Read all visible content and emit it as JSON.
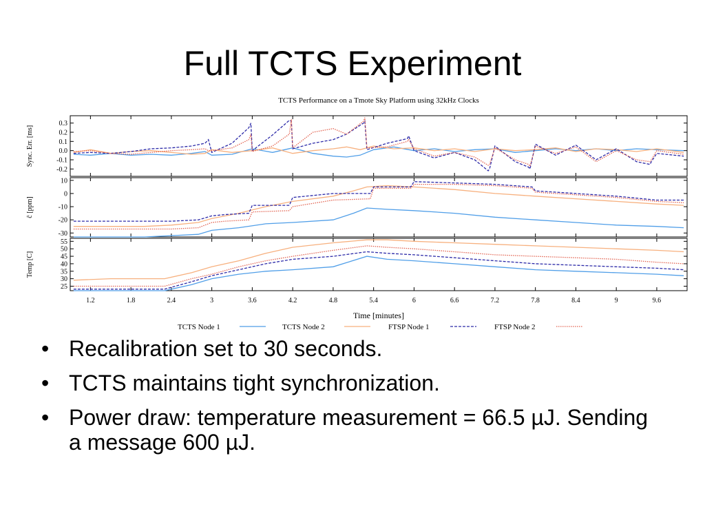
{
  "slide": {
    "title": "Full TCTS Experiment",
    "bullets": [
      "Recalibration set to 30 seconds.",
      "TCTS maintains tight synchronization.",
      "Power draw: temperature measurement = 66.5 µJ.  Sending a message 600 µJ."
    ]
  },
  "chart_data": {
    "type": "line",
    "title": "TCTS Performance on a Tmote Sky Platform using 32kHz Clocks",
    "xlabel": "Time [minutes]",
    "xlim": [
      0.9,
      10.05
    ],
    "x_ticks": [
      "1.2",
      "1.8",
      "2.4",
      "3",
      "3.6",
      "4.2",
      "4.8",
      "5.4",
      "6",
      "6.6",
      "7.2",
      "7.8",
      "8.4",
      "9",
      "9.6"
    ],
    "legend_position": "bottom",
    "legend": [
      {
        "name": "TCTS Node 1",
        "color": "#4f9ee8",
        "dash": "solid"
      },
      {
        "name": "TCTS Node 2",
        "color": "#f7b07e",
        "dash": "solid"
      },
      {
        "name": "FTSP Node 1",
        "color": "#2c2aa8",
        "dash": "dashed"
      },
      {
        "name": "FTSP Node 2",
        "color": "#e2624f",
        "dash": "dotted"
      }
    ],
    "panels": [
      {
        "ylabel": "Sync. Err. [ms]",
        "ylim": [
          -0.28,
          0.38
        ],
        "y_ticks": [
          "0.3",
          "0.2",
          "0.1",
          "0.0",
          "-0.1",
          "-0.2"
        ],
        "y_tick_values": [
          0.3,
          0.2,
          0.1,
          0.0,
          -0.1,
          -0.2
        ],
        "series": [
          {
            "name": "TCTS Node 1",
            "x": [
              0.95,
              1.2,
              1.5,
              1.8,
              2.1,
              2.4,
              2.7,
              2.9,
              3.0,
              3.3,
              3.6,
              3.9,
              4.2,
              4.5,
              4.8,
              5.0,
              5.2,
              5.4,
              5.7,
              6.0,
              6.3,
              6.6,
              6.9,
              7.2,
              7.5,
              7.8,
              8.1,
              8.4,
              8.7,
              9.0,
              9.3,
              9.6,
              10.0
            ],
            "y": [
              -0.04,
              -0.05,
              -0.03,
              -0.05,
              -0.04,
              -0.05,
              -0.03,
              -0.01,
              -0.05,
              -0.04,
              0.02,
              -0.02,
              0.03,
              -0.03,
              -0.06,
              -0.07,
              -0.05,
              0.01,
              0.04,
              0.0,
              0.02,
              -0.01,
              0.01,
              0.02,
              -0.02,
              0.0,
              0.02,
              0.0,
              0.02,
              0.0,
              0.02,
              0.01,
              0.0
            ]
          },
          {
            "name": "TCTS Node 2",
            "x": [
              0.95,
              1.2,
              1.5,
              1.8,
              2.1,
              2.4,
              2.7,
              2.9,
              3.0,
              3.3,
              3.6,
              3.9,
              4.2,
              4.5,
              4.8,
              5.0,
              5.2,
              5.4,
              5.7,
              6.0,
              6.3,
              6.6,
              6.9,
              7.2,
              7.5,
              7.8,
              8.1,
              8.4,
              8.7,
              9.0,
              9.3,
              9.6,
              10.0
            ],
            "y": [
              -0.02,
              0.01,
              -0.03,
              -0.01,
              0.0,
              -0.02,
              -0.04,
              -0.03,
              0.01,
              -0.02,
              0.0,
              0.03,
              -0.03,
              0.0,
              0.02,
              0.04,
              0.01,
              0.05,
              0.02,
              0.03,
              0.0,
              0.02,
              -0.01,
              0.02,
              0.0,
              0.01,
              0.03,
              -0.01,
              0.02,
              0.01,
              -0.01,
              0.02,
              -0.02
            ]
          },
          {
            "name": "FTSP Node 1",
            "x": [
              0.95,
              1.2,
              1.5,
              1.8,
              2.1,
              2.4,
              2.7,
              2.9,
              2.95,
              3.0,
              3.3,
              3.55,
              3.58,
              3.6,
              3.9,
              4.15,
              4.18,
              4.2,
              4.5,
              4.8,
              5.0,
              5.25,
              5.27,
              5.3,
              5.6,
              5.9,
              5.92,
              6.0,
              6.3,
              6.6,
              6.9,
              7.1,
              7.12,
              7.2,
              7.5,
              7.7,
              7.72,
              7.8,
              8.1,
              8.4,
              8.7,
              9.0,
              9.3,
              9.5,
              9.52,
              9.6,
              10.0
            ],
            "y": [
              -0.03,
              -0.02,
              -0.03,
              -0.01,
              0.02,
              0.03,
              0.05,
              0.08,
              0.12,
              -0.02,
              0.08,
              0.25,
              0.3,
              0.0,
              0.17,
              0.33,
              0.32,
              0.02,
              0.08,
              0.12,
              0.18,
              0.3,
              0.32,
              0.01,
              0.08,
              0.13,
              0.16,
              0.0,
              -0.08,
              -0.02,
              -0.1,
              -0.22,
              -0.2,
              0.05,
              -0.12,
              -0.18,
              -0.2,
              0.07,
              -0.05,
              0.06,
              -0.1,
              0.02,
              -0.12,
              -0.15,
              -0.12,
              -0.03,
              -0.06
            ]
          },
          {
            "name": "FTSP Node 2",
            "x": [
              0.95,
              1.2,
              1.5,
              1.8,
              2.1,
              2.4,
              2.7,
              2.9,
              2.95,
              3.0,
              3.3,
              3.55,
              3.58,
              3.6,
              3.9,
              4.15,
              4.18,
              4.2,
              4.5,
              4.8,
              5.0,
              5.25,
              5.27,
              5.3,
              5.6,
              5.9,
              5.92,
              6.0,
              6.3,
              6.6,
              6.9,
              7.1,
              7.12,
              7.2,
              7.5,
              7.7,
              7.72,
              7.8,
              8.1,
              8.4,
              8.7,
              9.0,
              9.3,
              9.5,
              9.52,
              9.6,
              10.0
            ],
            "y": [
              -0.01,
              0.0,
              -0.03,
              -0.04,
              -0.02,
              0.0,
              0.01,
              0.02,
              0.0,
              0.0,
              0.03,
              0.12,
              0.18,
              -0.01,
              0.05,
              0.18,
              0.34,
              0.03,
              0.2,
              0.24,
              0.18,
              0.32,
              0.36,
              0.03,
              0.04,
              0.1,
              0.12,
              0.02,
              -0.06,
              -0.02,
              -0.07,
              -0.16,
              -0.15,
              0.03,
              -0.1,
              -0.15,
              -0.17,
              0.05,
              -0.03,
              0.04,
              -0.12,
              0.0,
              -0.1,
              -0.12,
              -0.1,
              0.0,
              -0.04
            ]
          }
        ]
      },
      {
        "ylabel": "ĉ [ppm]",
        "ylim": [
          -33,
          12
        ],
        "y_ticks": [
          "10",
          "0",
          "-10",
          "-20",
          "-30"
        ],
        "y_tick_values": [
          10,
          0,
          -10,
          -20,
          -30
        ],
        "series": [
          {
            "name": "TCTS Node 1",
            "x": [
              0.95,
              1.5,
              2.0,
              2.4,
              2.8,
              3.0,
              3.4,
              3.8,
              4.2,
              4.8,
              5.1,
              5.3,
              5.6,
              6.0,
              6.6,
              7.2,
              7.8,
              8.4,
              9.0,
              9.6,
              10.0
            ],
            "y": [
              -33,
              -33,
              -33,
              -32,
              -31,
              -28,
              -26,
              -23,
              -22,
              -20,
              -15,
              -11,
              -12,
              -13,
              -15,
              -18,
              -20,
              -22,
              -24,
              -25,
              -26
            ]
          },
          {
            "name": "TCTS Node 2",
            "x": [
              0.95,
              1.5,
              2.0,
              2.4,
              2.8,
              3.0,
              3.4,
              3.8,
              4.2,
              4.8,
              5.1,
              5.3,
              5.6,
              6.0,
              6.6,
              7.2,
              7.8,
              8.4,
              9.0,
              9.6,
              10.0
            ],
            "y": [
              -25,
              -25,
              -25,
              -24,
              -22,
              -19,
              -15,
              -10,
              -6,
              -2,
              2,
              5,
              6,
              5,
              3,
              0,
              -2,
              -4,
              -6,
              -8,
              -9
            ]
          },
          {
            "name": "FTSP Node 1",
            "x": [
              0.95,
              1.5,
              2.0,
              2.4,
              2.8,
              3.0,
              3.2,
              3.55,
              3.6,
              4.15,
              4.2,
              4.8,
              5.35,
              5.4,
              5.95,
              6.0,
              6.6,
              7.2,
              7.75,
              7.8,
              8.4,
              9.0,
              9.6,
              10.0
            ],
            "y": [
              -21,
              -21,
              -21,
              -21,
              -20,
              -17,
              -16,
              -15,
              -9,
              -9,
              -3,
              0,
              0,
              5,
              5,
              9,
              8,
              7,
              5,
              2,
              0,
              -2,
              -5,
              -5
            ]
          },
          {
            "name": "FTSP Node 2",
            "x": [
              0.95,
              1.5,
              2.0,
              2.4,
              2.8,
              3.0,
              3.2,
              3.55,
              3.6,
              4.15,
              4.2,
              4.8,
              5.35,
              5.4,
              5.95,
              6.0,
              6.6,
              7.2,
              7.75,
              7.8,
              8.4,
              9.0,
              9.6,
              10.0
            ],
            "y": [
              -27,
              -27,
              -27,
              -27,
              -26,
              -22,
              -21,
              -20,
              -14,
              -13,
              -10,
              -5,
              -4,
              4,
              4,
              7,
              7,
              6,
              4,
              1,
              -1,
              -3,
              -6,
              -7
            ]
          }
        ]
      },
      {
        "ylabel": "Temp [C]",
        "ylim": [
          22,
          57
        ],
        "y_ticks": [
          "55",
          "50",
          "45",
          "40",
          "35",
          "30",
          "25"
        ],
        "y_tick_values": [
          55,
          50,
          45,
          40,
          35,
          30,
          25
        ],
        "series": [
          {
            "name": "TCTS Node 1",
            "x": [
              0.95,
              1.5,
              2.0,
              2.3,
              2.7,
              3.0,
              3.4,
              3.8,
              4.2,
              4.8,
              5.3,
              5.6,
              6.0,
              6.6,
              7.2,
              7.8,
              8.4,
              9.0,
              9.6,
              10.0
            ],
            "y": [
              22,
              22,
              22,
              22,
              26,
              30,
              33,
              35,
              36,
              38,
              45,
              43,
              42,
              40,
              38,
              36,
              35,
              34,
              33,
              32
            ]
          },
          {
            "name": "TCTS Node 2",
            "x": [
              0.95,
              1.5,
              2.0,
              2.3,
              2.7,
              3.0,
              3.4,
              3.8,
              4.2,
              4.8,
              5.3,
              5.6,
              6.0,
              6.6,
              7.2,
              7.8,
              8.4,
              9.0,
              9.6,
              10.0
            ],
            "y": [
              29,
              30,
              30,
              30,
              34,
              38,
              42,
              47,
              51,
              54,
              56,
              56,
              55,
              54,
              53,
              52,
              51,
              50,
              49,
              48
            ]
          },
          {
            "name": "FTSP Node 1",
            "x": [
              0.95,
              1.5,
              2.0,
              2.3,
              2.7,
              3.0,
              3.4,
              3.8,
              4.2,
              4.8,
              5.3,
              5.6,
              6.0,
              6.6,
              7.2,
              7.8,
              8.4,
              9.0,
              9.6,
              10.0
            ],
            "y": [
              23,
              23,
              23,
              23,
              28,
              32,
              36,
              40,
              43,
              45,
              48,
              47,
              46,
              44,
              42,
              40,
              39,
              38,
              37,
              36
            ]
          },
          {
            "name": "FTSP Node 2",
            "x": [
              0.95,
              1.5,
              2.0,
              2.3,
              2.7,
              3.0,
              3.4,
              3.8,
              4.2,
              4.8,
              5.3,
              5.6,
              6.0,
              6.6,
              7.2,
              7.8,
              8.4,
              9.0,
              9.6,
              10.0
            ],
            "y": [
              25,
              25,
              25,
              25,
              30,
              33,
              38,
              42,
              45,
              49,
              52,
              51,
              50,
              48,
              46,
              45,
              44,
              43,
              41,
              40
            ]
          }
        ]
      }
    ]
  }
}
